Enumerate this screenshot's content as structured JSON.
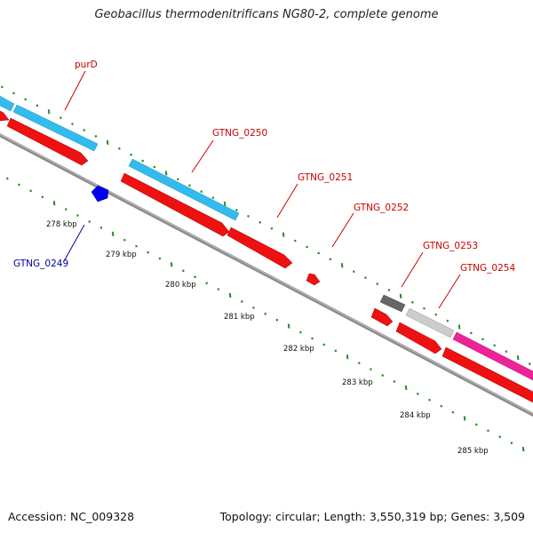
{
  "title": "Geobacillus thermodenitrificans NG80-2, complete genome",
  "footer": {
    "accession": "Accession: NC_009328",
    "summary": "Topology: circular; Length: 3,550,319 bp; Genes: 3,509"
  },
  "colors": {
    "backbone": "#8c8c8c",
    "cds_forward": "#ee1111",
    "cds_reverse": "#0000ee",
    "feature_cyan": "#33bbee",
    "feature_gray_dark": "#666666",
    "feature_gray_light": "#cccccc",
    "feature_magenta": "#ee2299",
    "tick_green": "#2a8a2a",
    "label_forward": "#cc0000",
    "label_reverse": "#000099"
  },
  "axis": {
    "unit": "kbp",
    "ticks": [
      "278 kbp",
      "279 kbp",
      "280 kbp",
      "281 kbp",
      "282 kbp",
      "283 kbp",
      "284 kbp",
      "285 kbp"
    ]
  },
  "gene_labels": [
    {
      "name": "purD",
      "strand": "forward"
    },
    {
      "name": "GTNG_0249",
      "strand": "reverse"
    },
    {
      "name": "GTNG_0250",
      "strand": "forward"
    },
    {
      "name": "GTNG_0251",
      "strand": "forward"
    },
    {
      "name": "GTNG_0252",
      "strand": "forward"
    },
    {
      "name": "GTNG_0253",
      "strand": "forward"
    },
    {
      "name": "GTNG_0254",
      "strand": "forward"
    }
  ]
}
